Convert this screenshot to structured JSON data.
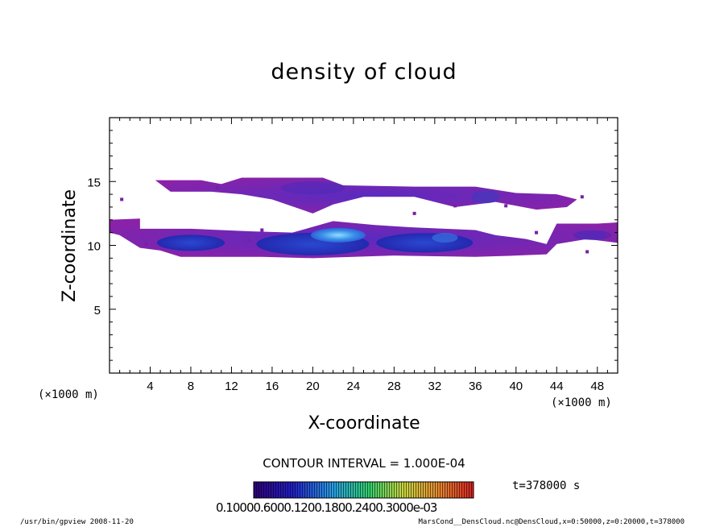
{
  "chart_data": {
    "type": "heatmap",
    "title": "density of cloud",
    "xlabel": "X-coordinate",
    "ylabel": "Z-coordinate",
    "x_unit_left": "(×1000 m)",
    "x_unit_right": "(×1000 m)",
    "xlim": [
      0,
      50
    ],
    "ylim": [
      0,
      20
    ],
    "xticks": [
      4,
      8,
      12,
      16,
      20,
      24,
      28,
      32,
      36,
      40,
      44,
      48
    ],
    "yticks": [
      5,
      10,
      15
    ],
    "contour_interval": "CONTOUR INTERVAL = 1.000E-04",
    "time_label": "t=378000 s",
    "colorbar_ticks": "0.10000.6000.1200.1800.2400.3000e-03",
    "colors": {
      "low": "#7a1fa2",
      "mid": "#2b2bb8",
      "high": "#3d8fe0",
      "peak": "#7fd1ff"
    },
    "cloud_bands": [
      {
        "name": "upper band",
        "z_bottom": 12.5,
        "z_top": 15.3,
        "x_start": 4.5,
        "x_end": 46
      },
      {
        "name": "lower band",
        "z_bottom": 9.0,
        "z_top": 12.0,
        "x_start": 0,
        "x_end": 50
      }
    ]
  },
  "footer": {
    "left": "/usr/bin/gpview   2008-11-20",
    "right": "MarsCond__DensCloud.nc@DensCloud,x=0:50000,z=0:20000,t=378000"
  }
}
